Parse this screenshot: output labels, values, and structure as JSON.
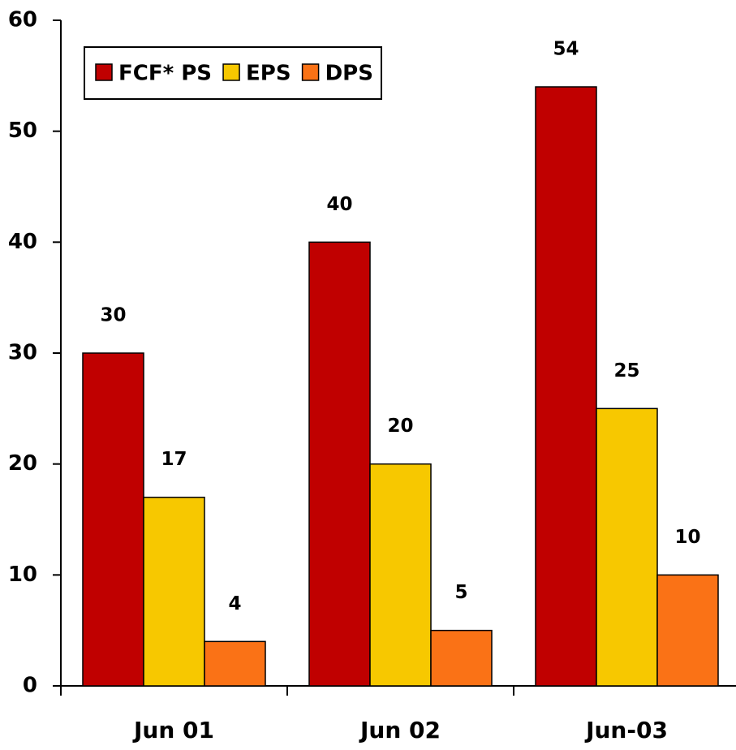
{
  "chart_data": {
    "type": "bar",
    "categories": [
      "Jun 01",
      "Jun 02",
      "Jun-03"
    ],
    "series": [
      {
        "name": "FCF* PS",
        "color": "#c00000",
        "values": [
          30,
          40,
          54
        ]
      },
      {
        "name": "EPS",
        "color": "#f7c800",
        "values": [
          17,
          20,
          25
        ]
      },
      {
        "name": "DPS",
        "color": "#fa7216",
        "values": [
          4,
          5,
          10
        ]
      }
    ],
    "ylim": [
      0,
      60
    ],
    "yticks": [
      0,
      10,
      20,
      30,
      40,
      50,
      60
    ],
    "legend": "top-left",
    "data_labels": true
  }
}
